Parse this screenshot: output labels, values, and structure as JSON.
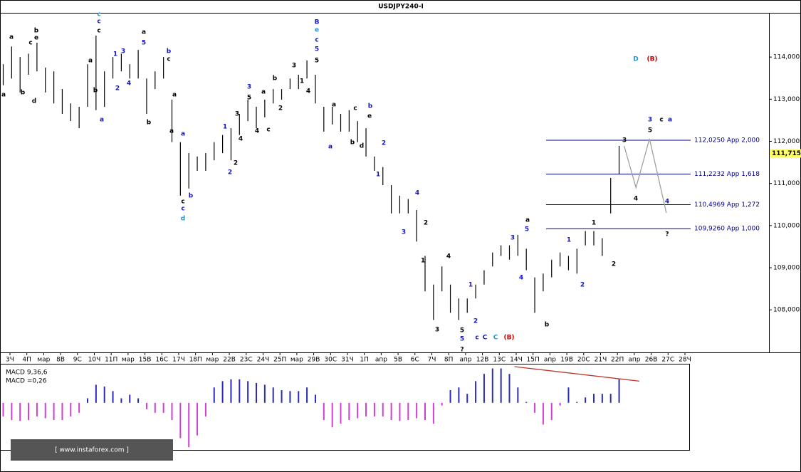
{
  "chart_data": {
    "type": "ohlc",
    "title": "USDJPY240-I",
    "categories": [
      "3Ч",
      "4П",
      "мар",
      "8В",
      "9С",
      "10Ч",
      "11П",
      "мар",
      "15В",
      "16С",
      "17Ч",
      "18П",
      "мар",
      "22В",
      "23С",
      "24Ч",
      "25П",
      "мар",
      "29В",
      "30С",
      "31Ч",
      "1П",
      "апр",
      "5В",
      "6С",
      "7Ч",
      "8П",
      "апр",
      "12В",
      "13С",
      "14Ч",
      "15П",
      "апр",
      "19В",
      "20С",
      "21Ч",
      "22П",
      "апр",
      "26В",
      "27С",
      "28Ч"
    ],
    "xlim": [
      -0.59,
      44.98
    ],
    "ylim": [
      106.99,
      115.05
    ],
    "yticks": [
      {
        "value": 108,
        "label": "108,000"
      },
      {
        "value": 109,
        "label": "109,000"
      },
      {
        "value": 110,
        "label": "110,000"
      },
      {
        "value": 111,
        "label": "111,000"
      },
      {
        "value": 112,
        "label": "112,000"
      },
      {
        "value": 113,
        "label": "113,000"
      },
      {
        "value": 114,
        "label": "114,000"
      }
    ],
    "current": {
      "value": 111.715,
      "label": "111,715"
    },
    "bar_color": "#000000",
    "x": [
      -0.4,
      0.1,
      0.6,
      1.1,
      1.6,
      2.1,
      2.6,
      3.1,
      3.6,
      4.1,
      4.6,
      5.1,
      5.6,
      6.1,
      6.6,
      7.1,
      7.6,
      8.1,
      8.6,
      9.1,
      9.6,
      10.1,
      10.6,
      11.1,
      11.6,
      12.1,
      12.6,
      13.1,
      13.6,
      14.1,
      14.6,
      15.1,
      15.6,
      16.1,
      16.6,
      17.1,
      17.6,
      18.1,
      18.6,
      19.1,
      19.6,
      20.1,
      20.6,
      21.1,
      21.6,
      22.1,
      22.6,
      23.1,
      23.6,
      24.1,
      24.6,
      25.1,
      25.6,
      26.1,
      26.6,
      27.1,
      27.6,
      28.1,
      28.6,
      29.1,
      29.6,
      30.1,
      30.6,
      31.1,
      31.6,
      32.1,
      32.6,
      33.1,
      33.6,
      34.1,
      34.6,
      35.1,
      35.6,
      36.1
    ],
    "high": [
      113.83,
      114.25,
      114.0,
      114.08,
      114.34,
      113.75,
      113.66,
      113.24,
      112.9,
      112.82,
      113.83,
      114.51,
      113.66,
      114.0,
      114.08,
      113.83,
      114.17,
      113.49,
      113.66,
      114.0,
      112.99,
      111.98,
      111.72,
      111.64,
      111.72,
      111.98,
      112.15,
      112.31,
      112.65,
      112.99,
      112.82,
      112.99,
      113.24,
      113.24,
      113.49,
      113.58,
      113.92,
      113.58,
      112.82,
      112.82,
      112.65,
      112.74,
      112.48,
      112.31,
      111.64,
      111.39,
      110.96,
      110.71,
      110.63,
      110.37,
      109.28,
      108.6,
      109.03,
      108.6,
      108.27,
      108.27,
      108.6,
      108.94,
      109.36,
      109.53,
      109.53,
      109.78,
      109.45,
      108.77,
      108.86,
      109.19,
      109.36,
      109.28,
      109.45,
      109.87,
      109.87,
      109.7,
      111.13,
      111.89
    ],
    "low": [
      113.33,
      113.49,
      113.16,
      113.58,
      113.66,
      113.16,
      112.9,
      112.65,
      112.48,
      112.31,
      112.82,
      112.74,
      112.82,
      113.49,
      113.66,
      113.49,
      113.49,
      112.65,
      113.24,
      113.49,
      111.98,
      110.71,
      110.88,
      111.3,
      111.3,
      111.55,
      111.72,
      111.55,
      112.15,
      112.48,
      112.31,
      112.57,
      112.9,
      112.99,
      113.24,
      113.24,
      113.49,
      112.9,
      112.23,
      112.4,
      112.23,
      112.23,
      111.98,
      111.64,
      111.3,
      110.96,
      110.29,
      110.29,
      110.29,
      109.62,
      108.44,
      107.76,
      108.44,
      107.93,
      107.76,
      107.93,
      108.27,
      108.6,
      109.03,
      109.28,
      109.19,
      109.28,
      108.94,
      107.93,
      108.44,
      108.77,
      109.03,
      108.94,
      108.86,
      109.53,
      109.53,
      109.28,
      110.29,
      111.22
    ],
    "levels": {
      "color": "#00008b",
      "items": [
        {
          "value": 112.025,
          "label": "112,0250 App 2,000"
        },
        {
          "value": 111.2232,
          "label": "111,2232 App 1,618"
        },
        {
          "value": 110.4969,
          "label": "110,4969 App 1,272"
        },
        {
          "value": 109.926,
          "label": "109,9260 App 1,000"
        }
      ]
    },
    "projection": {
      "color": "#a0a0a0",
      "x": [
        36.4,
        37.1,
        37.9,
        38.9
      ],
      "values": [
        111.89,
        110.9,
        112.06,
        110.3
      ]
    },
    "annotations": [
      {
        "text": "a",
        "color": "#000000"
      },
      {
        "text": "b",
        "color": "#000000"
      },
      {
        "text": "e",
        "color": "#000000"
      },
      {
        "text": "c",
        "color": "#000000"
      },
      {
        "text": "a",
        "color": "#000000"
      },
      {
        "text": "b",
        "color": "#000000"
      },
      {
        "text": "d",
        "color": "#000000"
      },
      {
        "text": "c",
        "color": "#1e96d2"
      },
      {
        "text": "c",
        "color": "#1414c8"
      },
      {
        "text": "c",
        "color": "#000000"
      },
      {
        "text": "a",
        "color": "#000000"
      },
      {
        "text": "b",
        "color": "#000000"
      },
      {
        "text": "1",
        "color": "#1414c8"
      },
      {
        "text": "3",
        "color": "#1414c8"
      },
      {
        "text": "2",
        "color": "#1414c8"
      },
      {
        "text": "4",
        "color": "#1414c8"
      },
      {
        "text": "5",
        "color": "#1414c8"
      },
      {
        "text": "a",
        "color": "#000000"
      },
      {
        "text": "a",
        "color": "#1414c8"
      },
      {
        "text": "b",
        "color": "#1414c8"
      },
      {
        "text": "c",
        "color": "#000000"
      },
      {
        "text": "b",
        "color": "#000000"
      },
      {
        "text": "a",
        "color": "#000000"
      },
      {
        "text": "a",
        "color": "#000000"
      },
      {
        "text": "a",
        "color": "#1414c8"
      },
      {
        "text": "b",
        "color": "#1414c8"
      },
      {
        "text": "c",
        "color": "#000000"
      },
      {
        "text": "c",
        "color": "#1414c8"
      },
      {
        "text": "d",
        "color": "#1e96d2"
      },
      {
        "text": "1",
        "color": "#1414c8"
      },
      {
        "text": "2",
        "color": "#1414c8"
      },
      {
        "text": "2",
        "color": "#000000"
      },
      {
        "text": "3",
        "color": "#000000"
      },
      {
        "text": "4",
        "color": "#000000"
      },
      {
        "text": "3",
        "color": "#1414c8"
      },
      {
        "text": "5",
        "color": "#000000"
      },
      {
        "text": "4",
        "color": "#000000"
      },
      {
        "text": "c",
        "color": "#000000"
      },
      {
        "text": "a",
        "color": "#000000"
      },
      {
        "text": "b",
        "color": "#000000"
      },
      {
        "text": "2",
        "color": "#000000"
      },
      {
        "text": "3",
        "color": "#000000"
      },
      {
        "text": "1",
        "color": "#000000"
      },
      {
        "text": "4",
        "color": "#000000"
      },
      {
        "text": "5",
        "color": "#000000"
      },
      {
        "text": "B",
        "color": "#1414c8"
      },
      {
        "text": "e",
        "color": "#1e96d2"
      },
      {
        "text": "c",
        "color": "#1414c8"
      },
      {
        "text": "5",
        "color": "#1414c8"
      },
      {
        "text": "a",
        "color": "#000000"
      },
      {
        "text": "c",
        "color": "#000000"
      },
      {
        "text": "e",
        "color": "#000000"
      },
      {
        "text": "b",
        "color": "#1414c8"
      },
      {
        "text": "b",
        "color": "#000000"
      },
      {
        "text": "d",
        "color": "#000000"
      },
      {
        "text": "a",
        "color": "#1414c8"
      },
      {
        "text": "2",
        "color": "#1414c8"
      },
      {
        "text": "1",
        "color": "#1414c8"
      },
      {
        "text": "4",
        "color": "#1414c8"
      },
      {
        "text": "3",
        "color": "#1414c8"
      },
      {
        "text": "2",
        "color": "#000000"
      },
      {
        "text": "1",
        "color": "#000000"
      },
      {
        "text": "4",
        "color": "#000000"
      },
      {
        "text": "3",
        "color": "#000000"
      },
      {
        "text": "5",
        "color": "#000000"
      },
      {
        "text": "5",
        "color": "#1414c8"
      },
      {
        "text": "?",
        "color": "#000000"
      },
      {
        "text": "1",
        "color": "#1414c8"
      },
      {
        "text": "2",
        "color": "#1414c8"
      },
      {
        "text": "c",
        "color": "#1414c8"
      },
      {
        "text": "C",
        "color": "#1414c8"
      },
      {
        "text": "C",
        "color": "#1e96d2"
      },
      {
        "text": "(B)",
        "color": "#c00000"
      },
      {
        "text": "3",
        "color": "#1414c8"
      },
      {
        "text": "5",
        "color": "#1414c8"
      },
      {
        "text": "a",
        "color": "#000000"
      },
      {
        "text": "4",
        "color": "#1414c8"
      },
      {
        "text": "b",
        "color": "#000000"
      },
      {
        "text": "1",
        "color": "#1414c8"
      },
      {
        "text": "2",
        "color": "#1414c8"
      },
      {
        "text": "1",
        "color": "#000000"
      },
      {
        "text": "2",
        "color": "#000000"
      },
      {
        "text": "3",
        "color": "#000000"
      },
      {
        "text": "4",
        "color": "#000000"
      },
      {
        "text": "5",
        "color": "#000000"
      },
      {
        "text": "3",
        "color": "#1414c8"
      },
      {
        "text": "c",
        "color": "#000000"
      },
      {
        "text": "a",
        "color": "#1414c8"
      },
      {
        "text": "4",
        "color": "#1414c8"
      },
      {
        "text": "?",
        "color": "#000000"
      },
      {
        "text": "D",
        "color": "#1e96d2"
      },
      {
        "text": "(B)",
        "color": "#c00000"
      }
    ],
    "macd": {
      "name": "MACD 9,36,6",
      "value_text": "MACD =0,26",
      "ylim": [
        -0.52,
        0.4
      ],
      "pos_color": "#2b2bb8",
      "neg_color": "#d040d0",
      "values": [
        -0.15,
        -0.19,
        -0.2,
        -0.19,
        -0.15,
        -0.17,
        -0.19,
        -0.19,
        -0.15,
        -0.11,
        0.05,
        0.2,
        0.18,
        0.13,
        0.05,
        0.09,
        0.05,
        -0.07,
        -0.11,
        -0.11,
        -0.19,
        -0.39,
        -0.49,
        -0.36,
        -0.15,
        0.17,
        0.24,
        0.26,
        0.26,
        0.24,
        0.22,
        0.2,
        0.17,
        0.14,
        0.13,
        0.13,
        0.17,
        0.09,
        -0.19,
        -0.27,
        -0.23,
        -0.19,
        -0.17,
        -0.15,
        -0.15,
        -0.15,
        -0.19,
        -0.2,
        -0.19,
        -0.17,
        -0.19,
        -0.23,
        -0.03,
        0.14,
        0.17,
        0.1,
        0.24,
        0.32,
        0.38,
        0.38,
        0.32,
        0.17,
        0.01,
        -0.11,
        -0.24,
        -0.19,
        -0.03,
        0.17,
        0.01,
        0.06,
        0.1,
        0.1,
        0.1,
        0.26
      ],
      "divergence": {
        "color": "#c0392b",
        "x": [
          29.9,
          37.3
        ],
        "values": [
          0.4,
          0.24
        ]
      }
    },
    "watermark": "[ www.instaforex.com ]"
  }
}
